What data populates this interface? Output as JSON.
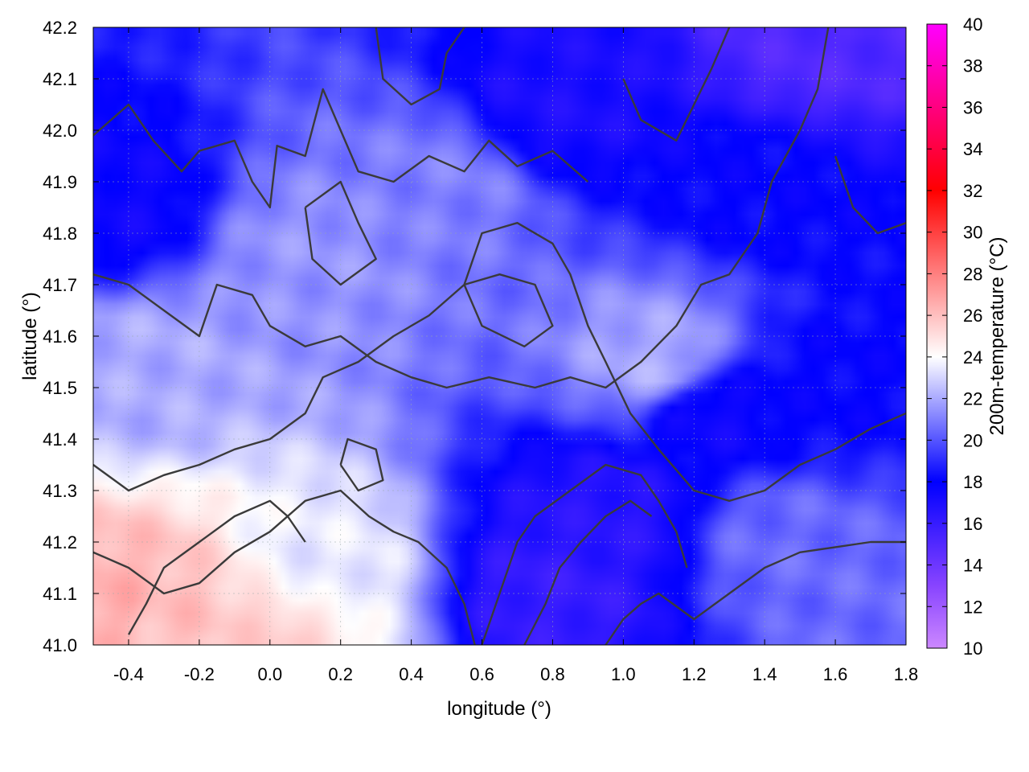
{
  "chart_data": {
    "type": "heatmap",
    "title": "",
    "xlabel": "longitude (°)",
    "ylabel": "latitude (°)",
    "xlim": [
      -0.5,
      1.8
    ],
    "ylim": [
      41.0,
      42.2
    ],
    "xticks": [
      -0.4,
      -0.2,
      0.0,
      0.2,
      0.4,
      0.6,
      0.8,
      1.0,
      1.2,
      1.4,
      1.6,
      1.8
    ],
    "xtick_labels": [
      "-0.4",
      "-0.2",
      "0.0",
      "0.2",
      "0.4",
      "0.6",
      "0.8",
      "1.0",
      "1.2",
      "1.4",
      "1.6",
      "1.8"
    ],
    "yticks": [
      41.0,
      41.1,
      41.2,
      41.3,
      41.4,
      41.5,
      41.6,
      41.7,
      41.8,
      41.9,
      42.0,
      42.1,
      42.2
    ],
    "ytick_labels": [
      "41.0",
      "41.1",
      "41.2",
      "41.3",
      "41.4",
      "41.5",
      "41.6",
      "41.7",
      "41.8",
      "41.9",
      "42.0",
      "42.1",
      "42.2"
    ],
    "grid": true,
    "colorbar": {
      "label": "200m-temperature (°C)",
      "range": [
        10,
        40
      ],
      "ticks": [
        10,
        12,
        14,
        16,
        18,
        20,
        22,
        24,
        26,
        28,
        30,
        32,
        34,
        36,
        38,
        40
      ],
      "tick_labels": [
        "10",
        "12",
        "14",
        "16",
        "18",
        "20",
        "22",
        "24",
        "26",
        "28",
        "30",
        "32",
        "34",
        "36",
        "38",
        "40"
      ],
      "stops": [
        {
          "value": 10,
          "color": "#cc88ff"
        },
        {
          "value": 13,
          "color": "#8844ff"
        },
        {
          "value": 18,
          "color": "#0000ff"
        },
        {
          "value": 24,
          "color": "#ffffff"
        },
        {
          "value": 32,
          "color": "#ff0000"
        },
        {
          "value": 40,
          "color": "#ff00ff"
        }
      ]
    },
    "field_samples": [
      {
        "lon": -0.45,
        "lat": 41.07,
        "temp": 26.5
      },
      {
        "lon": -0.3,
        "lat": 41.05,
        "temp": 26.0
      },
      {
        "lon": 0.0,
        "lat": 41.02,
        "temp": 25.5
      },
      {
        "lon": 0.15,
        "lat": 41.15,
        "temp": 23.5
      },
      {
        "lon": -0.35,
        "lat": 41.55,
        "temp": 22.0
      },
      {
        "lon": 0.1,
        "lat": 41.75,
        "temp": 21.5
      },
      {
        "lon": 0.5,
        "lat": 41.9,
        "temp": 21.0
      },
      {
        "lon": 1.1,
        "lat": 41.55,
        "temp": 22.0
      },
      {
        "lon": 1.45,
        "lat": 41.2,
        "temp": 20.5
      },
      {
        "lon": 1.7,
        "lat": 41.1,
        "temp": 20.5
      },
      {
        "lon": 0.8,
        "lat": 41.1,
        "temp": 16.0
      },
      {
        "lon": 0.95,
        "lat": 41.25,
        "temp": 16.5
      },
      {
        "lon": -0.45,
        "lat": 41.85,
        "temp": 17.5
      },
      {
        "lon": 1.4,
        "lat": 41.9,
        "temp": 18.0
      },
      {
        "lon": 1.6,
        "lat": 41.5,
        "temp": 18.0
      },
      {
        "lon": 0.8,
        "lat": 42.05,
        "temp": 17.0
      },
      {
        "lon": 1.55,
        "lat": 42.15,
        "temp": 15.0
      },
      {
        "lon": 1.25,
        "lat": 41.45,
        "temp": 17.5
      }
    ],
    "contours": [
      [
        [
          -0.5,
          41.99
        ],
        [
          -0.4,
          42.05
        ],
        [
          -0.33,
          41.98
        ],
        [
          -0.25,
          41.92
        ],
        [
          -0.2,
          41.96
        ],
        [
          -0.1,
          41.98
        ],
        [
          -0.05,
          41.9
        ],
        [
          0.0,
          41.85
        ],
        [
          0.02,
          41.97
        ],
        [
          0.1,
          41.95
        ],
        [
          0.15,
          42.08
        ],
        [
          0.2,
          42.0
        ],
        [
          0.25,
          41.92
        ],
        [
          0.35,
          41.9
        ],
        [
          0.45,
          41.95
        ],
        [
          0.55,
          41.92
        ],
        [
          0.62,
          41.98
        ],
        [
          0.7,
          41.93
        ],
        [
          0.8,
          41.96
        ],
        [
          0.9,
          41.9
        ]
      ],
      [
        [
          -0.5,
          41.72
        ],
        [
          -0.4,
          41.7
        ],
        [
          -0.3,
          41.65
        ],
        [
          -0.2,
          41.6
        ],
        [
          -0.15,
          41.7
        ],
        [
          -0.05,
          41.68
        ],
        [
          0.0,
          41.62
        ],
        [
          0.1,
          41.58
        ],
        [
          0.2,
          41.6
        ],
        [
          0.3,
          41.55
        ],
        [
          0.4,
          41.52
        ],
        [
          0.5,
          41.5
        ],
        [
          0.62,
          41.52
        ],
        [
          0.75,
          41.5
        ],
        [
          0.85,
          41.52
        ],
        [
          0.95,
          41.5
        ],
        [
          1.05,
          41.55
        ],
        [
          1.15,
          41.62
        ],
        [
          1.22,
          41.7
        ],
        [
          1.3,
          41.72
        ],
        [
          1.38,
          41.8
        ],
        [
          1.42,
          41.9
        ],
        [
          1.5,
          42.0
        ],
        [
          1.55,
          42.08
        ],
        [
          1.58,
          42.2
        ]
      ],
      [
        [
          -0.5,
          41.35
        ],
        [
          -0.4,
          41.3
        ],
        [
          -0.3,
          41.33
        ],
        [
          -0.2,
          41.35
        ],
        [
          -0.1,
          41.38
        ],
        [
          0.0,
          41.4
        ],
        [
          0.1,
          41.45
        ],
        [
          0.15,
          41.52
        ],
        [
          0.25,
          41.55
        ],
        [
          0.35,
          41.6
        ],
        [
          0.45,
          41.64
        ],
        [
          0.55,
          41.7
        ],
        [
          0.6,
          41.8
        ],
        [
          0.7,
          41.82
        ],
        [
          0.8,
          41.78
        ],
        [
          0.85,
          41.72
        ],
        [
          0.9,
          41.62
        ],
        [
          0.95,
          41.55
        ],
        [
          1.02,
          41.45
        ],
        [
          1.1,
          41.38
        ],
        [
          1.2,
          41.3
        ],
        [
          1.3,
          41.28
        ],
        [
          1.4,
          41.3
        ],
        [
          1.5,
          41.35
        ],
        [
          1.6,
          41.38
        ],
        [
          1.7,
          41.42
        ],
        [
          1.8,
          41.45
        ]
      ],
      [
        [
          -0.5,
          41.18
        ],
        [
          -0.4,
          41.15
        ],
        [
          -0.3,
          41.1
        ],
        [
          -0.2,
          41.12
        ],
        [
          -0.1,
          41.18
        ],
        [
          0.0,
          41.22
        ],
        [
          0.1,
          41.28
        ],
        [
          0.2,
          41.3
        ],
        [
          0.28,
          41.25
        ],
        [
          0.35,
          41.22
        ],
        [
          0.42,
          41.2
        ],
        [
          0.5,
          41.15
        ],
        [
          0.55,
          41.08
        ],
        [
          0.58,
          41.0
        ]
      ],
      [
        [
          0.95,
          41.0
        ],
        [
          1.0,
          41.05
        ],
        [
          1.05,
          41.08
        ],
        [
          1.1,
          41.1
        ],
        [
          1.2,
          41.05
        ],
        [
          1.3,
          41.1
        ],
        [
          1.4,
          41.15
        ],
        [
          1.5,
          41.18
        ],
        [
          1.6,
          41.19
        ],
        [
          1.7,
          41.2
        ],
        [
          1.8,
          41.2
        ]
      ],
      [
        [
          0.6,
          41.0
        ],
        [
          0.65,
          41.1
        ],
        [
          0.7,
          41.2
        ],
        [
          0.75,
          41.25
        ],
        [
          0.85,
          41.3
        ],
        [
          0.95,
          41.35
        ],
        [
          1.05,
          41.33
        ],
        [
          1.1,
          41.28
        ],
        [
          1.15,
          41.22
        ],
        [
          1.18,
          41.15
        ]
      ],
      [
        [
          0.72,
          41.0
        ],
        [
          0.78,
          41.08
        ],
        [
          0.82,
          41.15
        ],
        [
          0.88,
          41.2
        ],
        [
          0.95,
          41.25
        ],
        [
          1.02,
          41.28
        ],
        [
          1.08,
          41.25
        ]
      ],
      [
        [
          -0.4,
          41.02
        ],
        [
          -0.35,
          41.08
        ],
        [
          -0.3,
          41.15
        ],
        [
          -0.2,
          41.2
        ],
        [
          -0.1,
          41.25
        ],
        [
          0.0,
          41.28
        ],
        [
          0.05,
          41.25
        ],
        [
          0.1,
          41.2
        ]
      ],
      [
        [
          0.1,
          41.85
        ],
        [
          0.12,
          41.75
        ],
        [
          0.2,
          41.7
        ],
        [
          0.3,
          41.75
        ],
        [
          0.25,
          41.82
        ],
        [
          0.2,
          41.9
        ],
        [
          0.1,
          41.85
        ]
      ],
      [
        [
          0.55,
          41.7
        ],
        [
          0.6,
          41.62
        ],
        [
          0.72,
          41.58
        ],
        [
          0.8,
          41.62
        ],
        [
          0.75,
          41.7
        ],
        [
          0.65,
          41.72
        ],
        [
          0.55,
          41.7
        ]
      ],
      [
        [
          1.0,
          42.1
        ],
        [
          1.05,
          42.02
        ],
        [
          1.15,
          41.98
        ],
        [
          1.2,
          42.05
        ],
        [
          1.25,
          42.12
        ],
        [
          1.3,
          42.2
        ]
      ],
      [
        [
          0.3,
          42.2
        ],
        [
          0.32,
          42.1
        ],
        [
          0.4,
          42.05
        ],
        [
          0.48,
          42.08
        ],
        [
          0.5,
          42.15
        ],
        [
          0.55,
          42.2
        ]
      ],
      [
        [
          1.6,
          41.95
        ],
        [
          1.65,
          41.85
        ],
        [
          1.72,
          41.8
        ],
        [
          1.8,
          41.82
        ]
      ],
      [
        [
          0.2,
          41.35
        ],
        [
          0.25,
          41.3
        ],
        [
          0.32,
          41.32
        ],
        [
          0.3,
          41.38
        ],
        [
          0.22,
          41.4
        ],
        [
          0.2,
          41.35
        ]
      ]
    ]
  }
}
